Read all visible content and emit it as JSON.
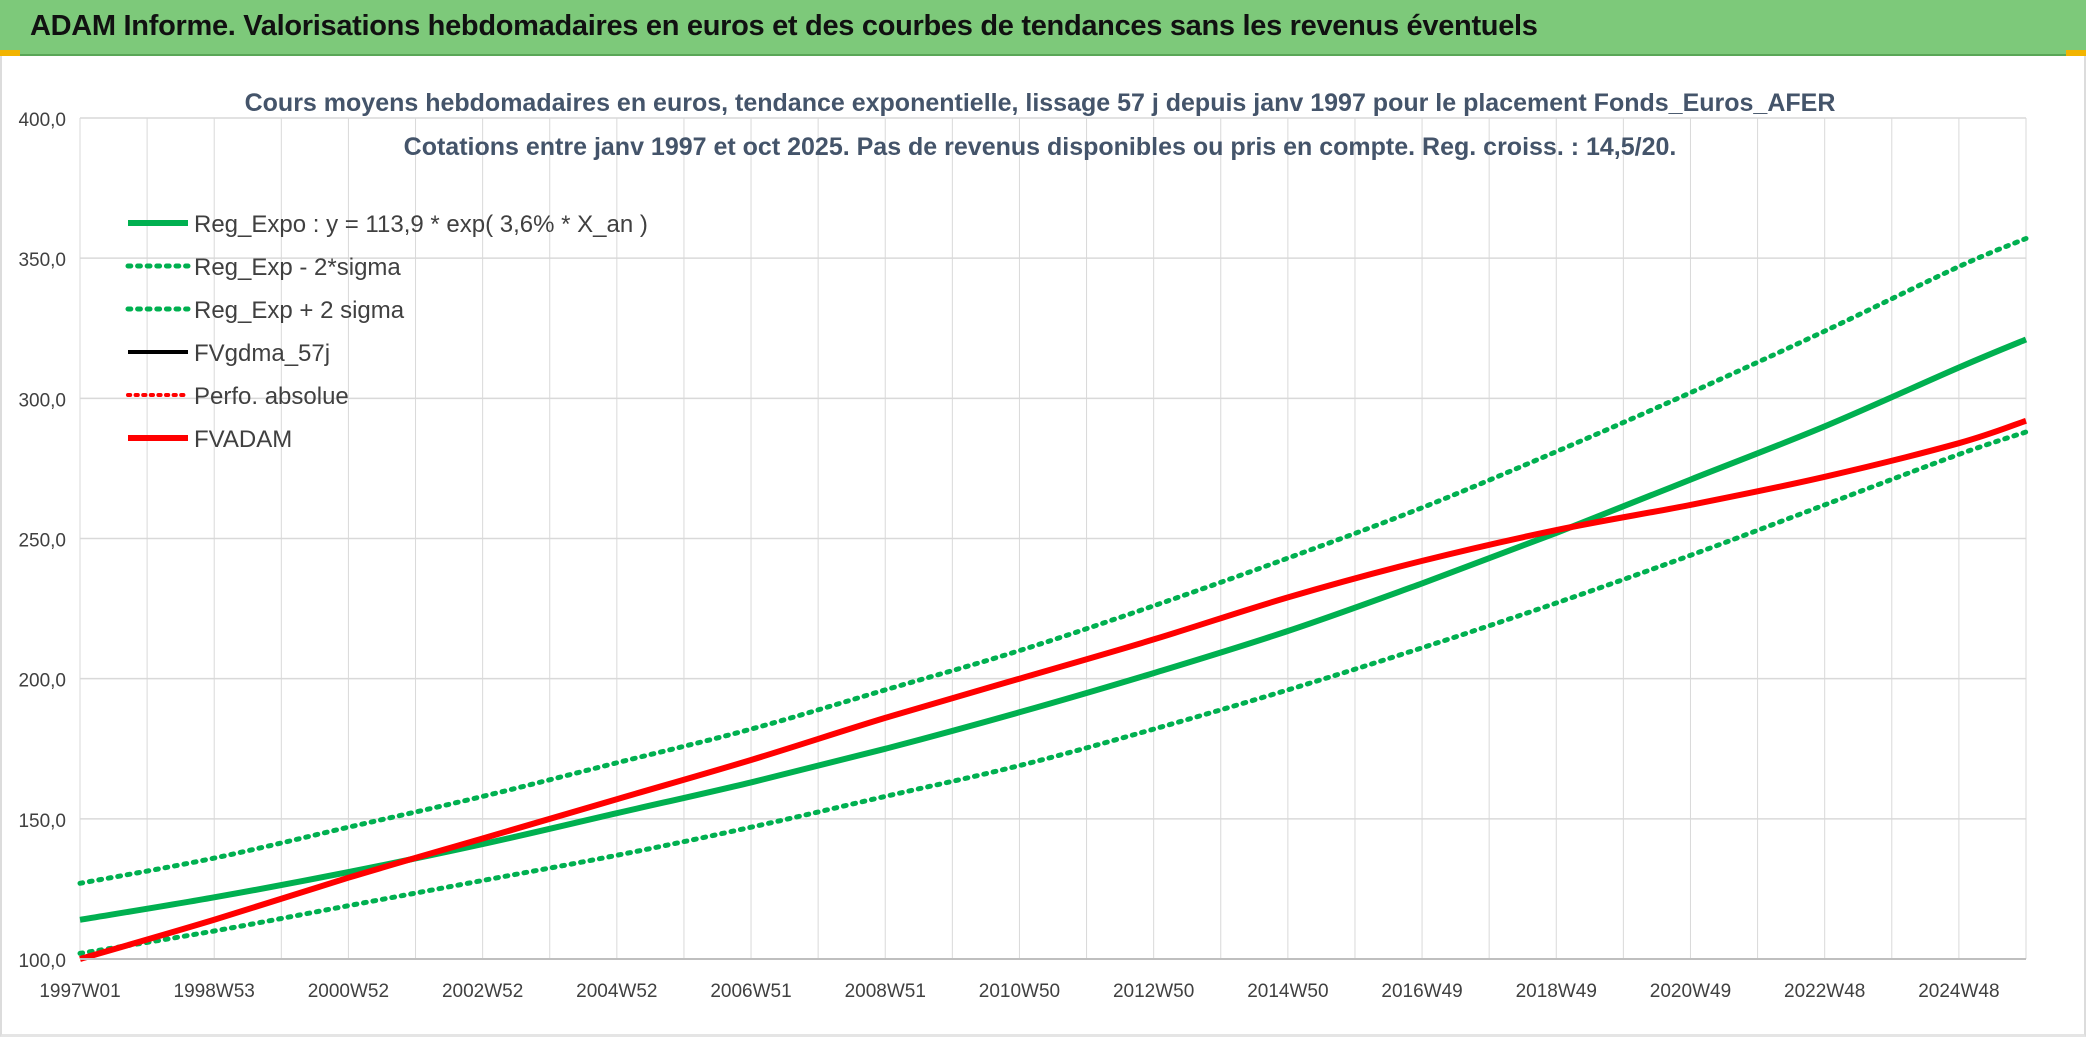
{
  "banner": {
    "title": "ADAM Informe. Valorisations hebdomadaires en euros et des courbes de tendances sans les revenus éventuels"
  },
  "colors": {
    "banner_bg": "#7dc97a",
    "green": "#00b050",
    "red": "#ff0000",
    "black": "#000000",
    "grid": "#d9d9d9"
  },
  "chart_data": {
    "type": "line",
    "title": "Cours moyens hebdomadaires en euros, tendance exponentielle, lissage 57 j depuis janv 1997 pour le placement Fonds_Euros_AFER",
    "subtitle": "Cotations entre janv 1997 et oct 2025. Pas de revenus disponibles ou pris en compte. Reg. croiss. : 14,5/20.",
    "xlabel": "",
    "ylabel": "",
    "ylim": [
      100,
      400
    ],
    "yticks": [
      "100,0",
      "150,0",
      "200,0",
      "250,0",
      "300,0",
      "350,0",
      "400,0"
    ],
    "yticks_values": [
      100,
      150,
      200,
      250,
      300,
      350,
      400
    ],
    "xlim": [
      1997.0,
      2026.0
    ],
    "xticks": [
      {
        "label": "1997W01",
        "x": 1997.0
      },
      {
        "label": "1998W53",
        "x": 1999.0
      },
      {
        "label": "2000W52",
        "x": 2001.0
      },
      {
        "label": "2002W52",
        "x": 2003.0
      },
      {
        "label": "2004W52",
        "x": 2005.0
      },
      {
        "label": "2006W51",
        "x": 2007.0
      },
      {
        "label": "2008W51",
        "x": 2009.0
      },
      {
        "label": "2010W50",
        "x": 2011.0
      },
      {
        "label": "2012W50",
        "x": 2013.0
      },
      {
        "label": "2014W50",
        "x": 2015.0
      },
      {
        "label": "2016W49",
        "x": 2017.0
      },
      {
        "label": "2018W49",
        "x": 2019.0
      },
      {
        "label": "2020W49",
        "x": 2021.0
      },
      {
        "label": "2022W48",
        "x": 2023.0
      },
      {
        "label": "2024W48",
        "x": 2025.0
      }
    ],
    "grid": true,
    "legend_placement": "top-left",
    "series": [
      {
        "name": "Reg_Expo : y = 113,9 * exp( 3,6% *  X_an )",
        "color": "#00b050",
        "style": "solid",
        "width": 6,
        "x": [
          1997,
          1999,
          2001,
          2003,
          2005,
          2007,
          2009,
          2011,
          2013,
          2015,
          2017,
          2019,
          2021,
          2023,
          2025,
          2026
        ],
        "y": [
          114,
          122,
          131,
          141,
          152,
          163,
          175,
          188,
          202,
          217,
          234,
          252,
          271,
          290,
          311,
          321
        ]
      },
      {
        "name": "Reg_Exp - 2*sigma",
        "color": "#00b050",
        "style": "dotted",
        "width": 5,
        "x": [
          1997,
          1999,
          2001,
          2003,
          2005,
          2007,
          2009,
          2011,
          2013,
          2015,
          2017,
          2019,
          2021,
          2023,
          2025,
          2026
        ],
        "y": [
          102,
          110,
          119,
          128,
          137,
          147,
          158,
          169,
          182,
          196,
          211,
          227,
          244,
          262,
          280,
          288
        ]
      },
      {
        "name": "Reg_Exp + 2 sigma",
        "color": "#00b050",
        "style": "dotted",
        "width": 5,
        "x": [
          1997,
          1999,
          2001,
          2003,
          2005,
          2007,
          2009,
          2011,
          2013,
          2015,
          2017,
          2019,
          2021,
          2023,
          2025,
          2026
        ],
        "y": [
          127,
          136,
          147,
          158,
          170,
          182,
          196,
          210,
          226,
          243,
          261,
          281,
          302,
          324,
          347,
          357
        ]
      },
      {
        "name": "FVgdma_57j",
        "color": "#000000",
        "style": "solid",
        "width": 4,
        "x": [],
        "y": []
      },
      {
        "name": "Perfo. absolue",
        "color": "#ff0000",
        "style": "dotted",
        "width": 4,
        "x": [],
        "y": []
      },
      {
        "name": "FVADAM",
        "color": "#ff0000",
        "style": "solid",
        "width": 6,
        "x": [
          1997,
          1999,
          2001,
          2003,
          2005,
          2007,
          2009,
          2011,
          2013,
          2015,
          2017,
          2019,
          2021,
          2023,
          2025,
          2026
        ],
        "y": [
          100,
          114,
          129,
          143,
          157,
          171,
          186,
          200,
          214,
          229,
          242,
          253,
          262,
          272,
          284,
          292
        ]
      }
    ]
  }
}
